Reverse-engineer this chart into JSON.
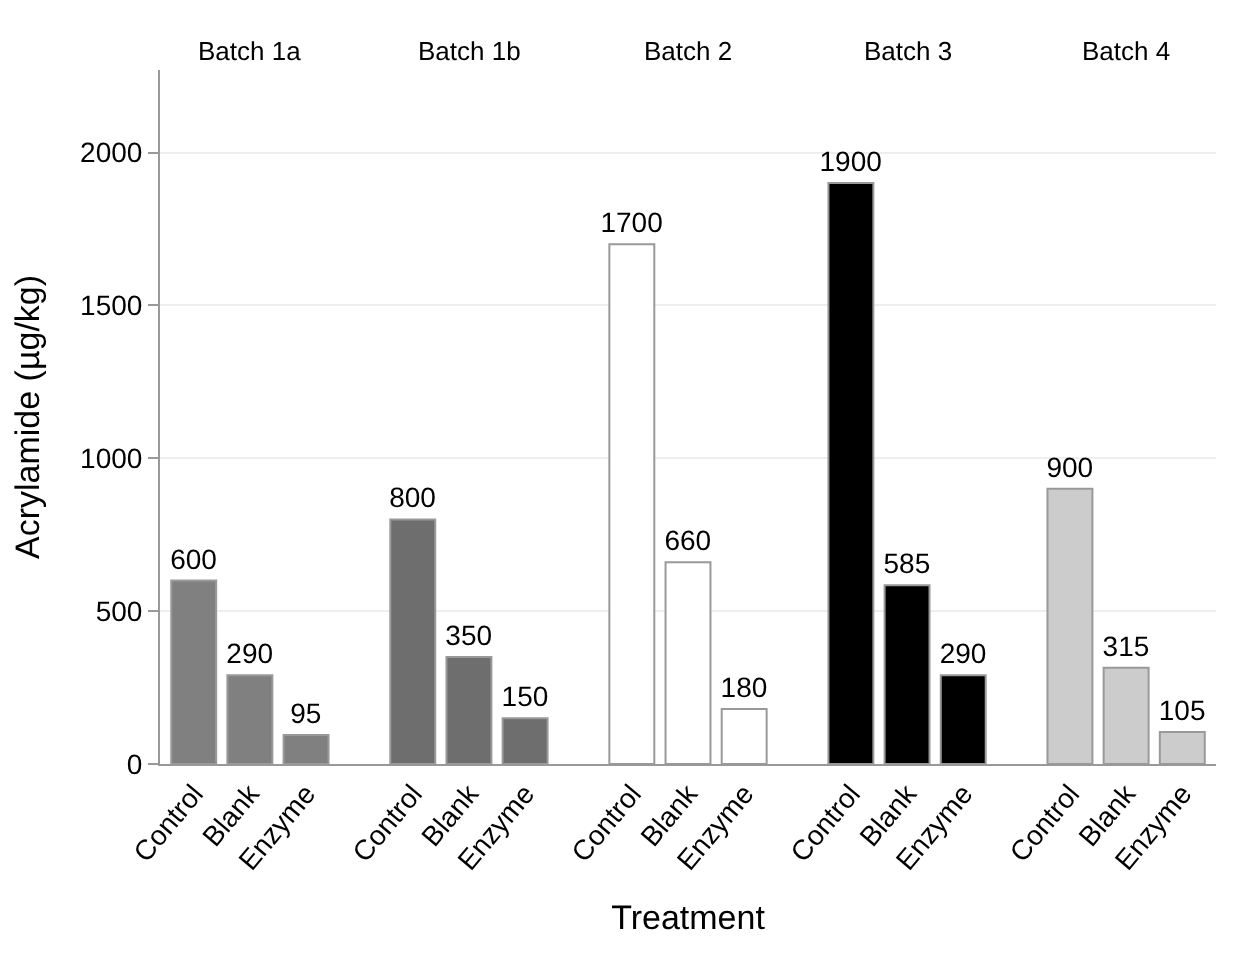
{
  "chart_data": {
    "type": "bar",
    "xlabel": "Treatment",
    "ylabel": "Acrylamide (µg/kg)",
    "categories": [
      "Control",
      "Blank",
      "Enzyme",
      "Control",
      "Blank",
      "Enzyme",
      "Control",
      "Blank",
      "Enzyme",
      "Control",
      "Blank",
      "Enzyme",
      "Control",
      "Blank",
      "Enzyme"
    ],
    "series": [
      {
        "color": "#808080",
        "values": [
          600,
          290,
          95,
          null,
          null,
          null,
          null,
          null,
          null,
          null,
          null,
          null,
          null,
          null,
          null
        ]
      },
      {
        "color": "#6e6e6e",
        "values": [
          null,
          null,
          null,
          800,
          350,
          150,
          null,
          null,
          null,
          null,
          null,
          null,
          null,
          null,
          null
        ]
      },
      {
        "color": "#ffffff",
        "values": [
          null,
          null,
          null,
          null,
          null,
          null,
          1700,
          660,
          180,
          null,
          null,
          null,
          null,
          null,
          null
        ]
      },
      {
        "color": "#000000",
        "values": [
          null,
          null,
          null,
          null,
          null,
          null,
          null,
          null,
          null,
          1900,
          585,
          290,
          null,
          null,
          null
        ]
      },
      {
        "color": "#cccccc",
        "values": [
          null,
          null,
          null,
          null,
          null,
          null,
          null,
          null,
          null,
          null,
          null,
          null,
          900,
          315,
          105
        ]
      }
    ],
    "annotations": [
      "Batch 1a",
      "Batch 1b",
      "Batch 2",
      "Batch 3",
      "Batch 4"
    ],
    "ylim": [
      0,
      2270
    ],
    "yticks": [
      0,
      500,
      1000,
      1500,
      2000
    ],
    "grid": "y",
    "data_labels": true
  }
}
